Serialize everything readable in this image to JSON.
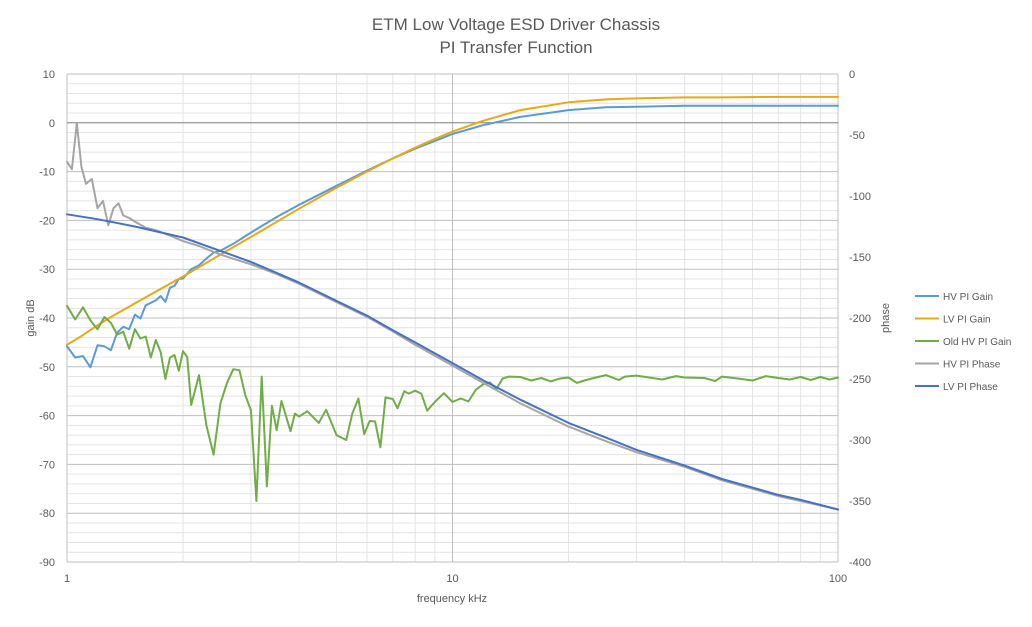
{
  "chart_data": {
    "type": "line",
    "title": "ETM Low Voltage ESD Driver Chassis",
    "subtitle": "PI Transfer Function",
    "xlabel": "frequency kHz",
    "ylabel": "gain dB",
    "y2label": "phase",
    "xscale": "log",
    "xlim": [
      1,
      100
    ],
    "ylim": [
      -90,
      10
    ],
    "y2lim": [
      -400,
      0
    ],
    "grid": true,
    "legend_position": "right",
    "x_ticks": [
      "1",
      "10",
      "100"
    ],
    "y_ticks": [
      "10",
      "0",
      "-10",
      "-20",
      "-30",
      "-40",
      "-50",
      "-60",
      "-70",
      "-80",
      "-90"
    ],
    "y2_ticks": [
      "0",
      "-50",
      "-100",
      "-150",
      "-200",
      "-250",
      "-300",
      "-350",
      "-400"
    ],
    "series": [
      {
        "name": "HV PI Gain",
        "axis": "left",
        "color": "#5b9bd5",
        "points": [
          [
            1,
            -45.8
          ],
          [
            1.05,
            -48.1
          ],
          [
            1.1,
            -47.8
          ],
          [
            1.15,
            -50.1
          ],
          [
            1.2,
            -45.6
          ],
          [
            1.25,
            -45.8
          ],
          [
            1.3,
            -46.6
          ],
          [
            1.35,
            -43
          ],
          [
            1.4,
            -41.8
          ],
          [
            1.45,
            -42.3
          ],
          [
            1.5,
            -39.3
          ],
          [
            1.55,
            -40.1
          ],
          [
            1.6,
            -37.4
          ],
          [
            1.7,
            -36.4
          ],
          [
            1.75,
            -35.5
          ],
          [
            1.8,
            -36.7
          ],
          [
            1.85,
            -33.8
          ],
          [
            1.9,
            -33.4
          ],
          [
            1.95,
            -32
          ],
          [
            2,
            -31.9
          ],
          [
            2.1,
            -30
          ],
          [
            2.2,
            -29.2
          ],
          [
            2.3,
            -27.8
          ],
          [
            2.4,
            -26.6
          ],
          [
            2.5,
            -26.2
          ],
          [
            2.7,
            -24.8
          ],
          [
            3,
            -22.5
          ],
          [
            3.5,
            -19.3
          ],
          [
            4,
            -16.8
          ],
          [
            5,
            -12.9
          ],
          [
            6,
            -9.8
          ],
          [
            7,
            -7.3
          ],
          [
            8,
            -5.3
          ],
          [
            9,
            -3.7
          ],
          [
            10,
            -2.3
          ],
          [
            12,
            -0.5
          ],
          [
            15,
            1.2
          ],
          [
            20,
            2.6
          ],
          [
            25,
            3.2
          ],
          [
            30,
            3.3
          ],
          [
            40,
            3.5
          ],
          [
            50,
            3.5
          ],
          [
            60,
            3.5
          ],
          [
            80,
            3.5
          ],
          [
            100,
            3.5
          ]
        ]
      },
      {
        "name": "LV PI Gain",
        "axis": "left",
        "color": "#e8a817",
        "points": [
          [
            1,
            -45.5
          ],
          [
            1.1,
            -43.5
          ],
          [
            1.2,
            -41.5
          ],
          [
            1.3,
            -39.8
          ],
          [
            1.5,
            -37
          ],
          [
            1.7,
            -34.6
          ],
          [
            2,
            -31.5
          ],
          [
            2.5,
            -27
          ],
          [
            3,
            -23.4
          ],
          [
            3.5,
            -20.3
          ],
          [
            4,
            -17.6
          ],
          [
            5,
            -13.3
          ],
          [
            6,
            -10
          ],
          [
            7,
            -7.3
          ],
          [
            8,
            -5.1
          ],
          [
            9,
            -3.3
          ],
          [
            10,
            -1.8
          ],
          [
            12,
            0.4
          ],
          [
            15,
            2.6
          ],
          [
            20,
            4.2
          ],
          [
            25,
            4.8
          ],
          [
            30,
            5
          ],
          [
            40,
            5.2
          ],
          [
            50,
            5.2
          ],
          [
            70,
            5.3
          ],
          [
            100,
            5.3
          ]
        ]
      },
      {
        "name": "Old HV PI Gain",
        "axis": "left",
        "color": "#70ad47",
        "points": [
          [
            1,
            -37.5
          ],
          [
            1.05,
            -40.3
          ],
          [
            1.1,
            -37.8
          ],
          [
            1.15,
            -40.5
          ],
          [
            1.2,
            -42.3
          ],
          [
            1.25,
            -39.8
          ],
          [
            1.3,
            -41
          ],
          [
            1.35,
            -43.4
          ],
          [
            1.4,
            -42.8
          ],
          [
            1.45,
            -46.3
          ],
          [
            1.5,
            -42.3
          ],
          [
            1.55,
            -44.2
          ],
          [
            1.6,
            -43.8
          ],
          [
            1.65,
            -48.1
          ],
          [
            1.7,
            -44.5
          ],
          [
            1.75,
            -47
          ],
          [
            1.8,
            -52.5
          ],
          [
            1.85,
            -48.1
          ],
          [
            1.9,
            -47.6
          ],
          [
            1.95,
            -50.8
          ],
          [
            2,
            -46.8
          ],
          [
            2.05,
            -48
          ],
          [
            2.1,
            -57.8
          ],
          [
            2.2,
            -51.7
          ],
          [
            2.3,
            -62
          ],
          [
            2.4,
            -68
          ],
          [
            2.5,
            -57.5
          ],
          [
            2.6,
            -53.3
          ],
          [
            2.7,
            -50.5
          ],
          [
            2.8,
            -50.7
          ],
          [
            2.9,
            -55.8
          ],
          [
            3,
            -58.9
          ],
          [
            3.1,
            -77.5
          ],
          [
            3.2,
            -52
          ],
          [
            3.3,
            -74.5
          ],
          [
            3.4,
            -58
          ],
          [
            3.5,
            -63
          ],
          [
            3.6,
            -57
          ],
          [
            3.8,
            -63.2
          ],
          [
            3.9,
            -59.6
          ],
          [
            4,
            -60.2
          ],
          [
            4.2,
            -59.1
          ],
          [
            4.5,
            -61.5
          ],
          [
            4.7,
            -58.8
          ],
          [
            5,
            -64
          ],
          [
            5.3,
            -65
          ],
          [
            5.5,
            -59.5
          ],
          [
            5.7,
            -56.5
          ],
          [
            5.9,
            -63.8
          ],
          [
            6.1,
            -61.1
          ],
          [
            6.3,
            -61.2
          ],
          [
            6.5,
            -66.5
          ],
          [
            6.7,
            -56.3
          ],
          [
            7,
            -56.6
          ],
          [
            7.2,
            -58.5
          ],
          [
            7.5,
            -55
          ],
          [
            7.7,
            -55.5
          ],
          [
            8,
            -54.9
          ],
          [
            8.3,
            -55.5
          ],
          [
            8.6,
            -59
          ],
          [
            9,
            -57.2
          ],
          [
            9.5,
            -55.4
          ],
          [
            10,
            -57.2
          ],
          [
            10.5,
            -56.5
          ],
          [
            11,
            -57.1
          ],
          [
            11.5,
            -54.7
          ],
          [
            12,
            -53.6
          ],
          [
            12.5,
            -53.2
          ],
          [
            13,
            -54.5
          ],
          [
            13.5,
            -52.4
          ],
          [
            14,
            -52
          ],
          [
            15,
            -52.1
          ],
          [
            16,
            -52.8
          ],
          [
            17,
            -52.3
          ],
          [
            18,
            -53
          ],
          [
            19,
            -52.4
          ],
          [
            20,
            -52.2
          ],
          [
            21,
            -53.3
          ],
          [
            22,
            -52.8
          ],
          [
            23,
            -52.4
          ],
          [
            25,
            -51.7
          ],
          [
            27,
            -52.7
          ],
          [
            28,
            -52
          ],
          [
            30,
            -51.8
          ],
          [
            33,
            -52.3
          ],
          [
            35,
            -52.6
          ],
          [
            38,
            -51.9
          ],
          [
            40,
            -52.2
          ],
          [
            45,
            -52.3
          ],
          [
            48,
            -52.9
          ],
          [
            50,
            -52
          ],
          [
            55,
            -52.4
          ],
          [
            60,
            -52.8
          ],
          [
            65,
            -51.9
          ],
          [
            70,
            -52.3
          ],
          [
            75,
            -52.6
          ],
          [
            80,
            -52.1
          ],
          [
            85,
            -52.7
          ],
          [
            90,
            -52.1
          ],
          [
            95,
            -52.6
          ],
          [
            100,
            -52.2
          ]
        ]
      },
      {
        "name": "HV PI Phase",
        "axis": "right",
        "color": "#a5a5a5",
        "points": [
          [
            1,
            -72
          ],
          [
            1.03,
            -78
          ],
          [
            1.06,
            -40
          ],
          [
            1.09,
            -76
          ],
          [
            1.12,
            -90
          ],
          [
            1.16,
            -86
          ],
          [
            1.2,
            -110
          ],
          [
            1.24,
            -104
          ],
          [
            1.28,
            -124
          ],
          [
            1.32,
            -110
          ],
          [
            1.36,
            -106
          ],
          [
            1.4,
            -116
          ],
          [
            1.45,
            -118
          ],
          [
            1.5,
            -121
          ],
          [
            1.6,
            -126
          ],
          [
            1.7,
            -128
          ],
          [
            1.8,
            -131
          ],
          [
            1.9,
            -134
          ],
          [
            2,
            -137
          ],
          [
            2.2,
            -141
          ],
          [
            2.5,
            -148
          ],
          [
            2.8,
            -153
          ],
          [
            3,
            -156
          ],
          [
            3.5,
            -164
          ],
          [
            4,
            -172
          ],
          [
            5,
            -187
          ],
          [
            6,
            -199
          ],
          [
            7,
            -211
          ],
          [
            8,
            -222
          ],
          [
            9,
            -231
          ],
          [
            10,
            -239
          ],
          [
            12,
            -253
          ],
          [
            15,
            -270
          ],
          [
            20,
            -289
          ],
          [
            25,
            -301
          ],
          [
            30,
            -310
          ],
          [
            40,
            -322
          ],
          [
            50,
            -333
          ],
          [
            60,
            -340
          ],
          [
            70,
            -346
          ],
          [
            80,
            -350
          ],
          [
            100,
            -357
          ]
        ]
      },
      {
        "name": "LV PI Phase",
        "axis": "right",
        "color": "#4472c4",
        "points": [
          [
            1,
            -115
          ],
          [
            1.2,
            -119
          ],
          [
            1.5,
            -125
          ],
          [
            2,
            -134
          ],
          [
            2.5,
            -145
          ],
          [
            3,
            -154
          ],
          [
            3.5,
            -163
          ],
          [
            4,
            -171
          ],
          [
            5,
            -186
          ],
          [
            6,
            -198
          ],
          [
            7,
            -210
          ],
          [
            8,
            -220
          ],
          [
            9,
            -229
          ],
          [
            10,
            -237
          ],
          [
            12,
            -251
          ],
          [
            15,
            -267
          ],
          [
            20,
            -286
          ],
          [
            25,
            -298
          ],
          [
            30,
            -308
          ],
          [
            40,
            -321
          ],
          [
            50,
            -332
          ],
          [
            60,
            -339
          ],
          [
            70,
            -345
          ],
          [
            80,
            -349
          ],
          [
            100,
            -357
          ]
        ]
      }
    ]
  }
}
